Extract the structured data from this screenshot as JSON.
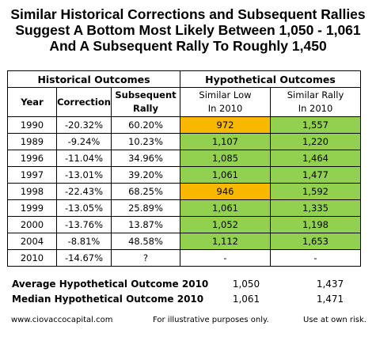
{
  "title": {
    "line1": "Similar Historical Corrections and Subsequent Rallies",
    "line2": "Suggest A Bottom Most Likely Between 1,050 - 1,061",
    "line3": "And A Subsequent Rally To Roughly 1,450"
  },
  "table": {
    "group_historical": "Historical Outcomes",
    "group_hypothetical": "Hypothetical Outcomes",
    "headers": {
      "year": "Year",
      "correction": "Correction",
      "rally": "Subsequent Rally",
      "low": "Similar Low In 2010",
      "rally_hyp": "Similar Rally In 2010"
    },
    "rows": [
      {
        "year": "1990",
        "correction": "-20.32%",
        "rally": "60.20%",
        "low": "972",
        "low_color": "orange",
        "rally_hyp": "1,557",
        "rally_hyp_color": "green"
      },
      {
        "year": "1989",
        "correction": "-9.24%",
        "rally": "10.23%",
        "low": "1,107",
        "low_color": "green",
        "rally_hyp": "1,220",
        "rally_hyp_color": "green"
      },
      {
        "year": "1996",
        "correction": "-11.04%",
        "rally": "34.96%",
        "low": "1,085",
        "low_color": "green",
        "rally_hyp": "1,464",
        "rally_hyp_color": "green"
      },
      {
        "year": "1997",
        "correction": "-13.01%",
        "rally": "39.20%",
        "low": "1,061",
        "low_color": "green",
        "rally_hyp": "1,477",
        "rally_hyp_color": "green"
      },
      {
        "year": "1998",
        "correction": "-22.43%",
        "rally": "68.25%",
        "low": "946",
        "low_color": "orange",
        "rally_hyp": "1,592",
        "rally_hyp_color": "green"
      },
      {
        "year": "1999",
        "correction": "-13.05%",
        "rally": "25.89%",
        "low": "1,061",
        "low_color": "green",
        "rally_hyp": "1,335",
        "rally_hyp_color": "green"
      },
      {
        "year": "2000",
        "correction": "-13.76%",
        "rally": "13.87%",
        "low": "1,052",
        "low_color": "green",
        "rally_hyp": "1,198",
        "rally_hyp_color": "green"
      },
      {
        "year": "2004",
        "correction": "-8.81%",
        "rally": "48.58%",
        "low": "1,112",
        "low_color": "green",
        "rally_hyp": "1,653",
        "rally_hyp_color": "green"
      },
      {
        "year": "2010",
        "correction": "-14.67%",
        "rally": "?",
        "low": "-",
        "low_color": "none",
        "rally_hyp": "-",
        "rally_hyp_color": "none"
      }
    ]
  },
  "summary": {
    "average": {
      "label": "Average Hypothetical Outcome 2010",
      "low": "1,050",
      "rally": "1,437"
    },
    "median": {
      "label": "Median Hypothetical Outcome 2010",
      "low": "1,061",
      "rally": "1,471"
    }
  },
  "footer": {
    "website": "www.ciovaccocapital.com",
    "illustrative": "For illustrative purposes only.",
    "risk": "Use at own risk."
  },
  "colors": {
    "orange": "#f8b800",
    "green": "#92d050"
  }
}
